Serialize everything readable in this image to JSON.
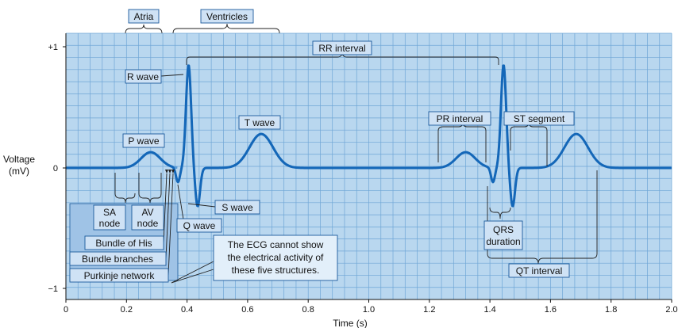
{
  "chart_data": {
    "type": "line",
    "xlabel": "Time (s)",
    "ylabel": "Voltage",
    "ylabel_unit": "(mV)",
    "x_ticks": [
      "0",
      "0.2",
      "0.4",
      "0.6",
      "0.8",
      "1.0",
      "1.2",
      "1.4",
      "1.6",
      "1.8",
      "2.0"
    ],
    "y_ticks": [
      "+1",
      "0",
      "−1"
    ],
    "xlim": [
      0,
      2.0
    ],
    "ylim": [
      -1.05,
      1.25
    ],
    "grid": true
  },
  "labels": {
    "atria": "Atria",
    "ventricles": "Ventricles",
    "rr_interval": "RR interval",
    "r_wave": "R wave",
    "t_wave": "T wave",
    "p_wave": "P wave",
    "pr_interval": "PR interval",
    "st_segment": "ST segment",
    "sa_node_1": "SA",
    "sa_node_2": "node",
    "av_node_1": "AV",
    "av_node_2": "node",
    "s_wave": "S wave",
    "q_wave": "Q wave",
    "bundle_of_his": "Bundle of His",
    "bundle_branches": "Bundle branches",
    "purkinje_network": "Purkinje network",
    "ecg_note_1": "The ECG cannot show",
    "ecg_note_2": "the electrical activity of",
    "ecg_note_3": "these five structures.",
    "qrs_1": "QRS",
    "qrs_2": "duration",
    "qt_interval": "QT interval"
  },
  "colors": {
    "grid_bg": "#b9d7ef",
    "grid_minor": "#6fa6d6",
    "grid_major": "#2f78c0",
    "trace": "#1467b8",
    "trace_light": "#5a9ad6",
    "label_bg": "#cfe2f5",
    "label_border": "#1a5a9c",
    "sa_box_bg": "#9fc3e6",
    "note_bg": "#e2effa"
  }
}
